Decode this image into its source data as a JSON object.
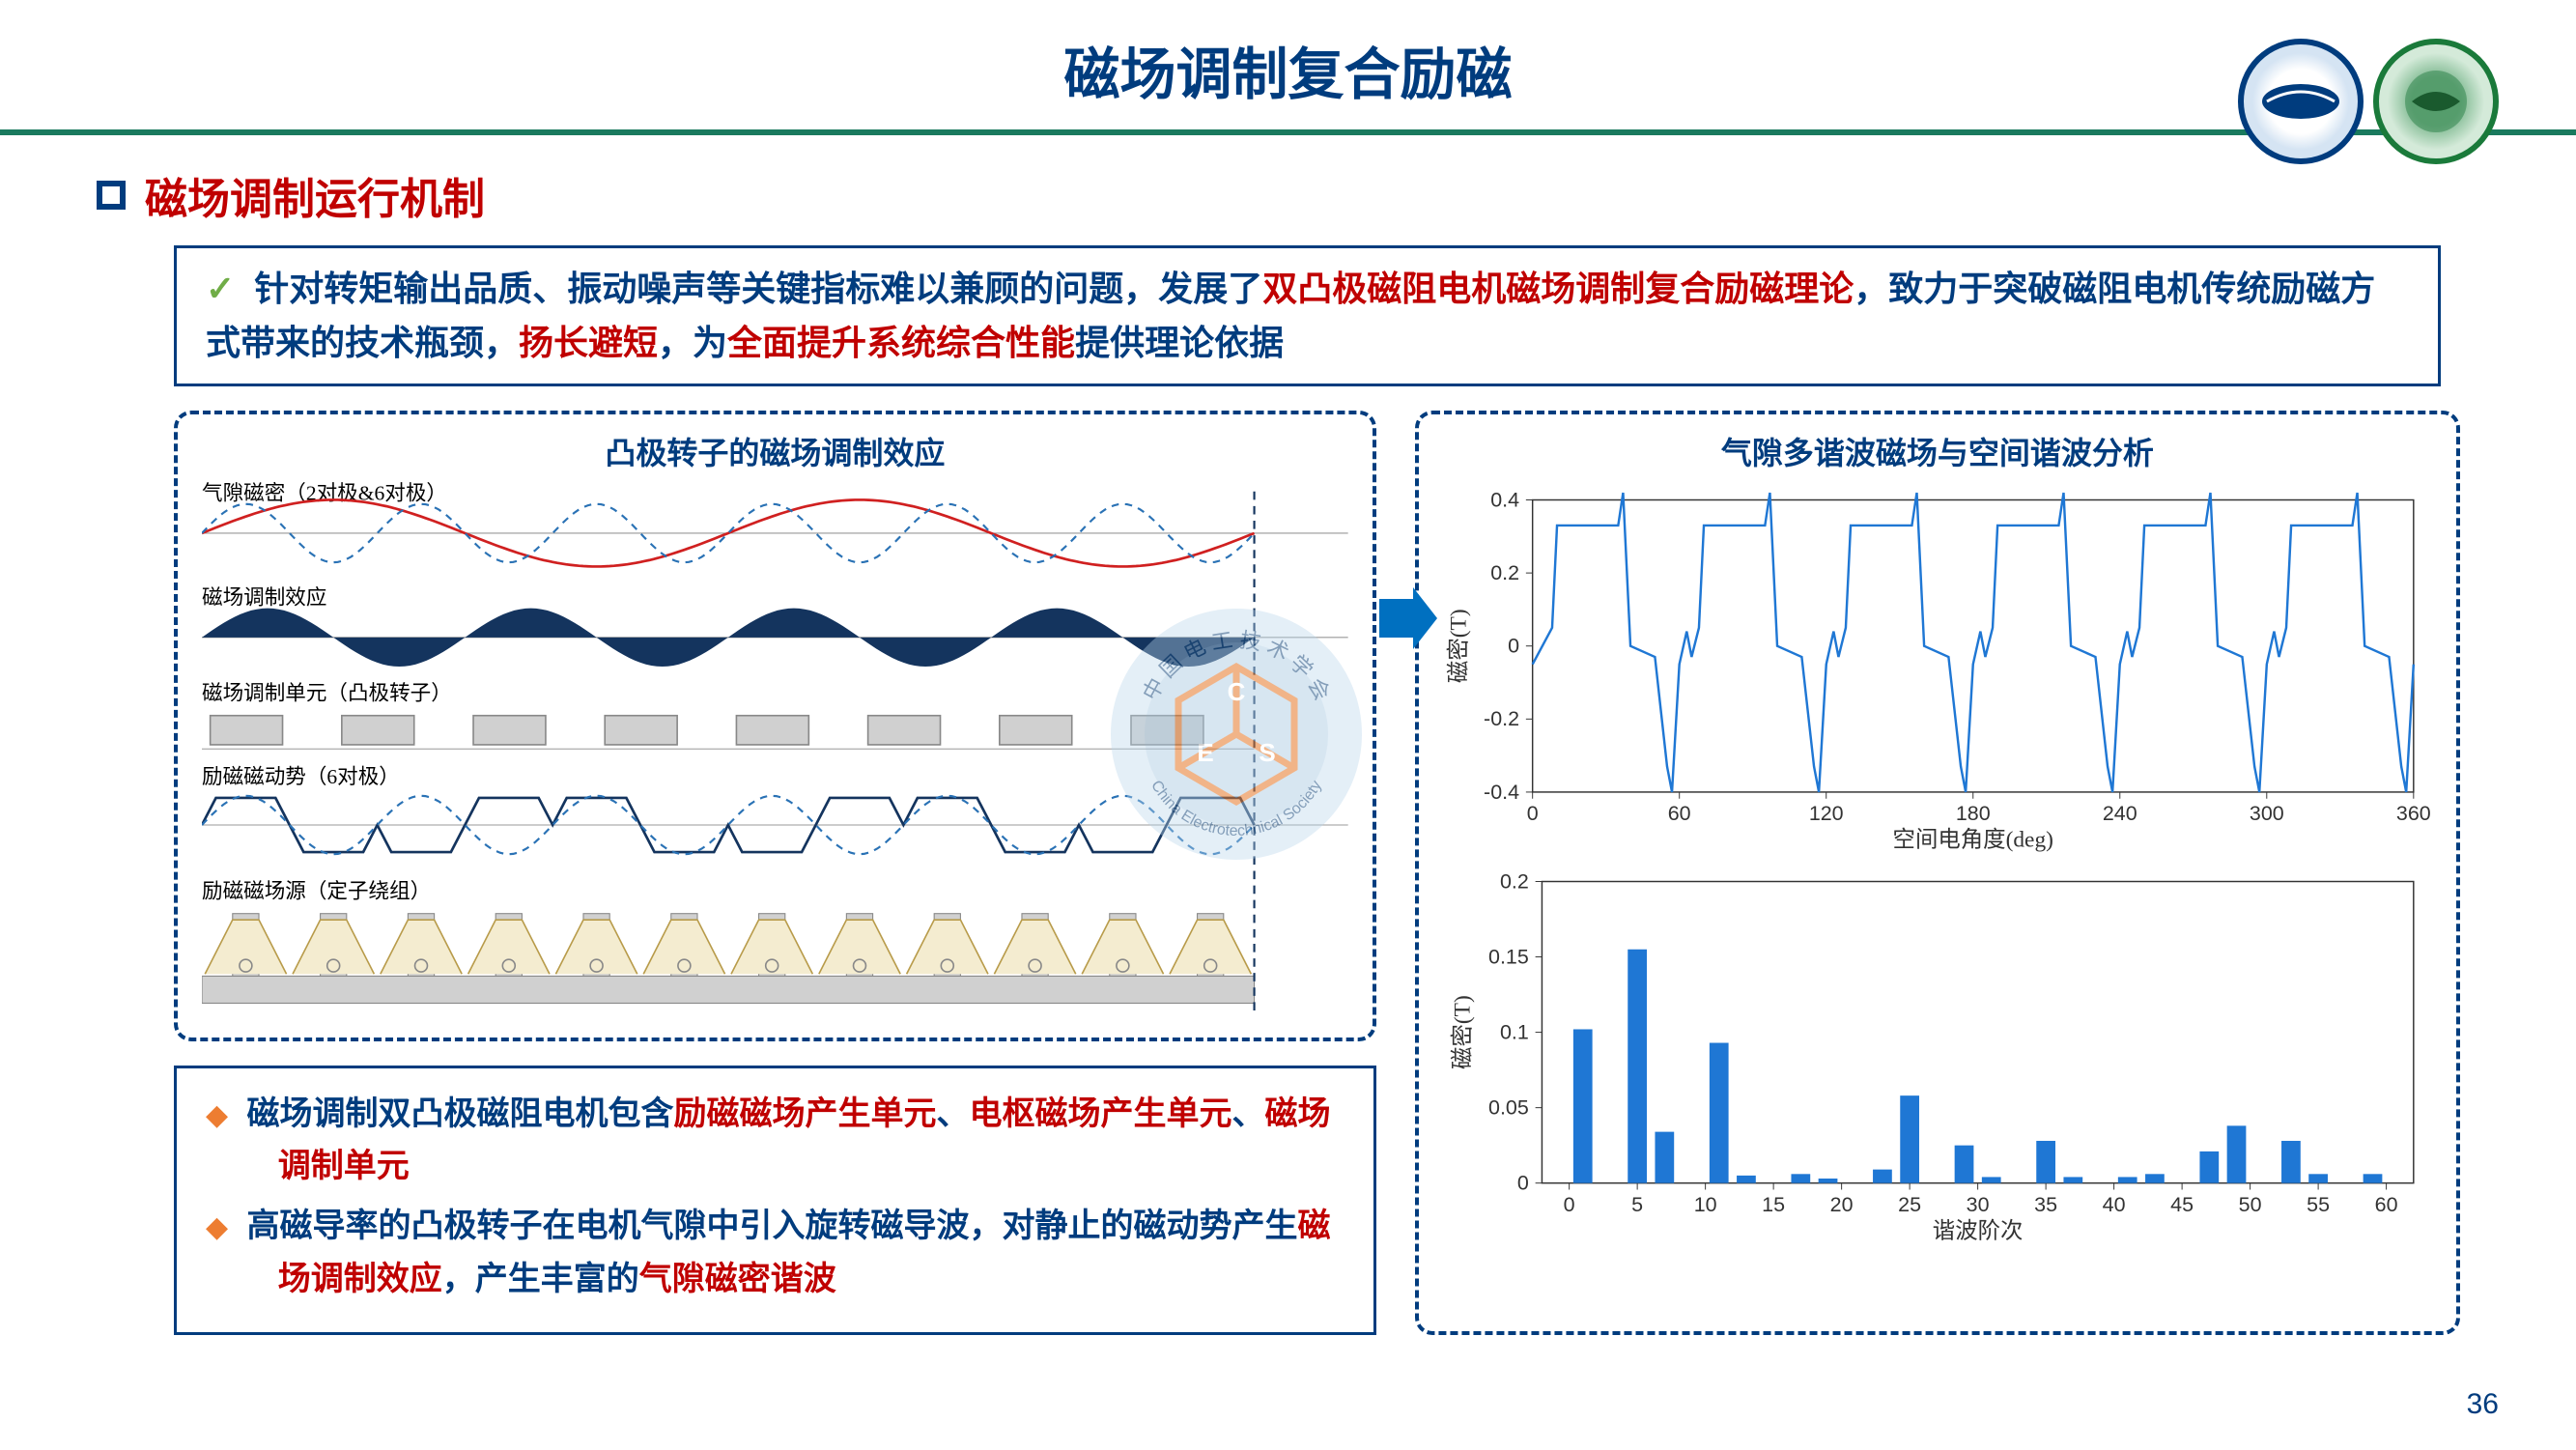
{
  "colors": {
    "primary_blue": "#003c7e",
    "accent_red": "#c00000",
    "accent_green_hr": "#1a7a5e",
    "accent_orange": "#ed7d31",
    "check_green": "#70ad47",
    "chart_blue": "#1f77d4",
    "chart_grid": "#e0e0e0",
    "diag_navy": "#14345e",
    "diag_grey": "#d0d0d0",
    "diag_dash": "#2a72b5",
    "diag_red": "#d02020",
    "diag_beige": "#f4ecd0"
  },
  "title": "磁场调制复合励磁",
  "section_title": "磁场调制运行机制",
  "intro": {
    "lead_black": "针对转矩输出品质、振动噪声等关键指标难以兼顾的问题，发展了",
    "red1": "双凸极磁阻电机磁场调制复合励磁理论",
    "mid_black": "，致力于突破磁阻电机传统励磁方式带来的技术瓶颈，",
    "red2": "扬长避短",
    "mid2_black": "，为",
    "red3": "全面提升系统综合性能",
    "tail_black": "提供理论依据"
  },
  "left_panel_title": "凸极转子的磁场调制效应",
  "diag": {
    "labels": {
      "row1": "气隙磁密（2对极&6对极）",
      "row2": "磁场调制效应",
      "row3": "磁场调制单元（凸极转子）",
      "row4": "励磁磁动势（6对极）",
      "row5": "励磁磁场源（定子绕组）"
    }
  },
  "right_panel_title": "气隙多谐波磁场与空间谐波分析",
  "chart1": {
    "type": "line",
    "xlim": [
      0,
      360
    ],
    "ylim": [
      -0.4,
      0.4
    ],
    "xticks": [
      0,
      60,
      120,
      180,
      240,
      300,
      360
    ],
    "yticks": [
      -0.4,
      -0.2,
      0,
      0.2,
      0.4
    ],
    "xlabel": "空间电角度(deg)",
    "ylabel": "磁密(T)",
    "line_color": "#1f77d4",
    "line_width": 2.5,
    "data_x": [
      0,
      8,
      10,
      35,
      37,
      40,
      50,
      55,
      57,
      60,
      63,
      65,
      68,
      70,
      95,
      97,
      100,
      110,
      115,
      117,
      120,
      123,
      125,
      128,
      130,
      155,
      157,
      160,
      170,
      175,
      177,
      180,
      183,
      185,
      188,
      190,
      215,
      217,
      220,
      230,
      235,
      237,
      240,
      243,
      245,
      248,
      250,
      275,
      277,
      280,
      290,
      295,
      297,
      300,
      303,
      305,
      308,
      310,
      335,
      337,
      340,
      350,
      355,
      357,
      360
    ],
    "data_y": [
      -0.05,
      0.05,
      0.33,
      0.33,
      0.42,
      0.0,
      -0.03,
      -0.33,
      -0.4,
      -0.05,
      0.04,
      -0.03,
      0.05,
      0.33,
      0.33,
      0.42,
      0.0,
      -0.03,
      -0.33,
      -0.4,
      -0.05,
      0.04,
      -0.03,
      0.05,
      0.33,
      0.33,
      0.42,
      0.0,
      -0.03,
      -0.33,
      -0.4,
      -0.05,
      0.04,
      -0.03,
      0.05,
      0.33,
      0.33,
      0.42,
      0.0,
      -0.03,
      -0.33,
      -0.4,
      -0.05,
      0.04,
      -0.03,
      0.05,
      0.33,
      0.33,
      0.42,
      0.0,
      -0.03,
      -0.33,
      -0.4,
      -0.05,
      0.04,
      -0.03,
      0.05,
      0.33,
      0.33,
      0.42,
      0.0,
      -0.03,
      -0.33,
      -0.4,
      -0.05
    ]
  },
  "chart2": {
    "type": "bar",
    "xlim": [
      -2,
      62
    ],
    "ylim": [
      0,
      0.2
    ],
    "xticks": [
      0,
      5,
      10,
      15,
      20,
      25,
      30,
      35,
      40,
      45,
      50,
      55,
      60
    ],
    "yticks": [
      0,
      0.05,
      0.1,
      0.15,
      0.2
    ],
    "xlabel": "谐波阶次",
    "ylabel": "磁密(T)",
    "bar_color": "#1f77d4",
    "bars": [
      {
        "x": 1,
        "y": 0.102
      },
      {
        "x": 5,
        "y": 0.155
      },
      {
        "x": 7,
        "y": 0.034
      },
      {
        "x": 11,
        "y": 0.093
      },
      {
        "x": 13,
        "y": 0.005
      },
      {
        "x": 17,
        "y": 0.006
      },
      {
        "x": 19,
        "y": 0.003
      },
      {
        "x": 23,
        "y": 0.009
      },
      {
        "x": 25,
        "y": 0.058
      },
      {
        "x": 29,
        "y": 0.025
      },
      {
        "x": 31,
        "y": 0.004
      },
      {
        "x": 35,
        "y": 0.028
      },
      {
        "x": 37,
        "y": 0.004
      },
      {
        "x": 41,
        "y": 0.004
      },
      {
        "x": 43,
        "y": 0.006
      },
      {
        "x": 47,
        "y": 0.021
      },
      {
        "x": 49,
        "y": 0.038
      },
      {
        "x": 53,
        "y": 0.028
      },
      {
        "x": 55,
        "y": 0.006
      },
      {
        "x": 59,
        "y": 0.006
      }
    ]
  },
  "bullets": {
    "b1_black_lead": "磁场调制双凸极磁阻电机包含",
    "b1_red1": "励磁磁场产生单元",
    "b1_sep1": "、",
    "b1_red2": "电枢磁场产生单元",
    "b1_sep2": "、",
    "b1_red3": "磁场调制单元",
    "b2_black_lead": "高磁导率的凸极转子在电机气隙中引入旋转磁导波，对静止的磁动势产生",
    "b2_red1": "磁场调制效应",
    "b2_mid": "，产生丰富的",
    "b2_red2": "气隙磁密谐波"
  },
  "page_number": "36",
  "watermark": {
    "text_outer_top": "中 国 电 工 技 术 学 会",
    "text_outer_bottom": "China Electrotechnical Society",
    "letters": [
      "C",
      "E",
      "S"
    ]
  }
}
